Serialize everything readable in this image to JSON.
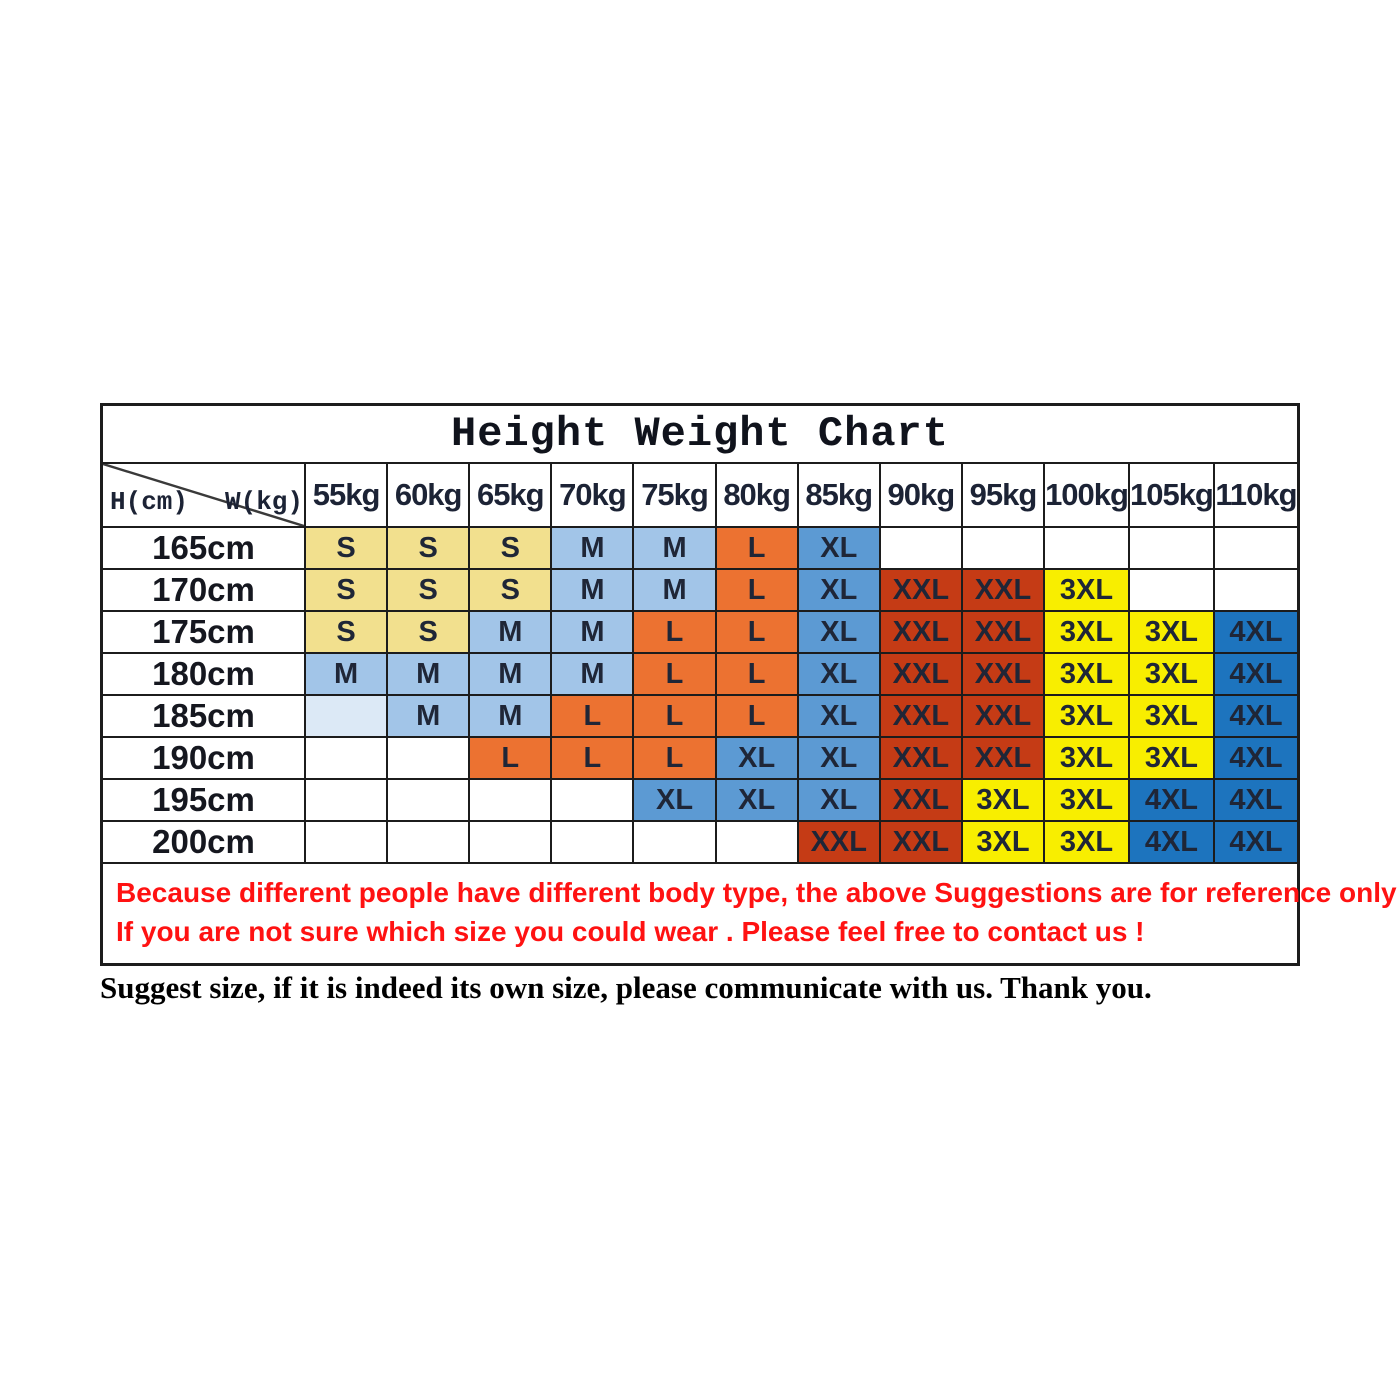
{
  "title": "Height Weight Chart",
  "corner": {
    "height_label": "H(cm)",
    "weight_label": "W(kg)"
  },
  "weight_headers": [
    "55kg",
    "60kg",
    "65kg",
    "70kg",
    "75kg",
    "80kg",
    "85kg",
    "90kg",
    "95kg",
    "100kg",
    "105kg",
    "110kg"
  ],
  "rows": [
    {
      "height": "165cm",
      "cells": [
        {
          "t": "S",
          "c": "s"
        },
        {
          "t": "S",
          "c": "s"
        },
        {
          "t": "S",
          "c": "s"
        },
        {
          "t": "M",
          "c": "m"
        },
        {
          "t": "M",
          "c": "m"
        },
        {
          "t": "L",
          "c": "l"
        },
        {
          "t": "XL",
          "c": "xl"
        },
        {
          "t": "",
          "c": ""
        },
        {
          "t": "",
          "c": ""
        },
        {
          "t": "",
          "c": ""
        },
        {
          "t": "",
          "c": ""
        },
        {
          "t": "",
          "c": ""
        }
      ]
    },
    {
      "height": "170cm",
      "cells": [
        {
          "t": "S",
          "c": "s"
        },
        {
          "t": "S",
          "c": "s"
        },
        {
          "t": "S",
          "c": "s"
        },
        {
          "t": "M",
          "c": "m"
        },
        {
          "t": "M",
          "c": "m"
        },
        {
          "t": "L",
          "c": "l"
        },
        {
          "t": "XL",
          "c": "xl"
        },
        {
          "t": "XXL",
          "c": "xxl"
        },
        {
          "t": "XXL",
          "c": "xxl"
        },
        {
          "t": "3XL",
          "c": "x3l"
        },
        {
          "t": "",
          "c": ""
        },
        {
          "t": "",
          "c": ""
        }
      ]
    },
    {
      "height": "175cm",
      "cells": [
        {
          "t": "S",
          "c": "s"
        },
        {
          "t": "S",
          "c": "s"
        },
        {
          "t": "M",
          "c": "m"
        },
        {
          "t": "M",
          "c": "m"
        },
        {
          "t": "L",
          "c": "l"
        },
        {
          "t": "L",
          "c": "l"
        },
        {
          "t": "XL",
          "c": "xl"
        },
        {
          "t": "XXL",
          "c": "xxl"
        },
        {
          "t": "XXL",
          "c": "xxl"
        },
        {
          "t": "3XL",
          "c": "x3l"
        },
        {
          "t": "3XL",
          "c": "x3l"
        },
        {
          "t": "4XL",
          "c": "x4l"
        }
      ]
    },
    {
      "height": "180cm",
      "cells": [
        {
          "t": "M",
          "c": "m"
        },
        {
          "t": "M",
          "c": "m"
        },
        {
          "t": "M",
          "c": "m"
        },
        {
          "t": "M",
          "c": "m"
        },
        {
          "t": "L",
          "c": "l"
        },
        {
          "t": "L",
          "c": "l"
        },
        {
          "t": "XL",
          "c": "xl"
        },
        {
          "t": "XXL",
          "c": "xxl"
        },
        {
          "t": "XXL",
          "c": "xxl"
        },
        {
          "t": "3XL",
          "c": "x3l"
        },
        {
          "t": "3XL",
          "c": "x3l"
        },
        {
          "t": "4XL",
          "c": "x4l"
        }
      ]
    },
    {
      "height": "185cm",
      "cells": [
        {
          "t": "",
          "c": "ml"
        },
        {
          "t": "M",
          "c": "m"
        },
        {
          "t": "M",
          "c": "m"
        },
        {
          "t": "L",
          "c": "l"
        },
        {
          "t": "L",
          "c": "l"
        },
        {
          "t": "L",
          "c": "l"
        },
        {
          "t": "XL",
          "c": "xl"
        },
        {
          "t": "XXL",
          "c": "xxl"
        },
        {
          "t": "XXL",
          "c": "xxl"
        },
        {
          "t": "3XL",
          "c": "x3l"
        },
        {
          "t": "3XL",
          "c": "x3l"
        },
        {
          "t": "4XL",
          "c": "x4l"
        }
      ]
    },
    {
      "height": "190cm",
      "cells": [
        {
          "t": "",
          "c": ""
        },
        {
          "t": "",
          "c": ""
        },
        {
          "t": "L",
          "c": "l"
        },
        {
          "t": "L",
          "c": "l"
        },
        {
          "t": "L",
          "c": "l"
        },
        {
          "t": "XL",
          "c": "xl"
        },
        {
          "t": "XL",
          "c": "xl"
        },
        {
          "t": "XXL",
          "c": "xxl"
        },
        {
          "t": "XXL",
          "c": "xxl"
        },
        {
          "t": "3XL",
          "c": "x3l"
        },
        {
          "t": "3XL",
          "c": "x3l"
        },
        {
          "t": "4XL",
          "c": "x4l"
        }
      ]
    },
    {
      "height": "195cm",
      "cells": [
        {
          "t": "",
          "c": ""
        },
        {
          "t": "",
          "c": ""
        },
        {
          "t": "",
          "c": ""
        },
        {
          "t": "",
          "c": ""
        },
        {
          "t": "XL",
          "c": "xl"
        },
        {
          "t": "XL",
          "c": "xl"
        },
        {
          "t": "XL",
          "c": "xl"
        },
        {
          "t": "XXL",
          "c": "xxl"
        },
        {
          "t": "3XL",
          "c": "x3l"
        },
        {
          "t": "3XL",
          "c": "x3l"
        },
        {
          "t": "4XL",
          "c": "x4l"
        },
        {
          "t": "4XL",
          "c": "x4l"
        }
      ]
    },
    {
      "height": "200cm",
      "cells": [
        {
          "t": "",
          "c": ""
        },
        {
          "t": "",
          "c": ""
        },
        {
          "t": "",
          "c": ""
        },
        {
          "t": "",
          "c": ""
        },
        {
          "t": "",
          "c": ""
        },
        {
          "t": "",
          "c": ""
        },
        {
          "t": "XXL",
          "c": "xxl"
        },
        {
          "t": "XXL",
          "c": "xxl"
        },
        {
          "t": "3XL",
          "c": "x3l"
        },
        {
          "t": "3XL",
          "c": "x3l"
        },
        {
          "t": "4XL",
          "c": "x4l"
        },
        {
          "t": "4XL",
          "c": "x4l"
        }
      ]
    }
  ],
  "notes": [
    "Because different people have different body type, the above Suggestions are for reference only !",
    "If you are not sure which size you could wear . Please feel free to contact us !"
  ],
  "footer": "Suggest size, if it is indeed its own size, please communicate with us. Thank you.",
  "colors": {
    "s": "#F2E08E",
    "m": "#A2C5E8",
    "ml": "#DCE9F6",
    "l": "#EC7231",
    "xl": "#5C9AD3",
    "xxl": "#C53B15",
    "x3l": "#F8EE00",
    "x4l": "#1D74BE",
    "red": "#FF1212",
    "grid": "#1c1c1c"
  },
  "size_color_legend": {
    "S": "#F2E08E",
    "M": "#A2C5E8",
    "L": "#EC7231",
    "XL": "#5C9AD3",
    "XXL": "#C53B15",
    "3XL": "#F8EE00",
    "4XL": "#1D74BE",
    "unlabeled": "#DCE9F6"
  },
  "chart_data": {
    "type": "table",
    "title": "Height Weight Chart",
    "row_axis": "H(cm)",
    "col_axis": "W(kg)",
    "columns": [
      "55kg",
      "60kg",
      "65kg",
      "70kg",
      "75kg",
      "80kg",
      "85kg",
      "90kg",
      "95kg",
      "100kg",
      "105kg",
      "110kg"
    ],
    "rows": [
      "165cm",
      "170cm",
      "175cm",
      "180cm",
      "185cm",
      "190cm",
      "195cm",
      "200cm"
    ],
    "matrix": [
      [
        "S",
        "S",
        "S",
        "M",
        "M",
        "L",
        "XL",
        "",
        "",
        "",
        "",
        ""
      ],
      [
        "S",
        "S",
        "S",
        "M",
        "M",
        "L",
        "XL",
        "XXL",
        "XXL",
        "3XL",
        "",
        ""
      ],
      [
        "S",
        "S",
        "M",
        "M",
        "L",
        "L",
        "XL",
        "XXL",
        "XXL",
        "3XL",
        "3XL",
        "4XL"
      ],
      [
        "M",
        "M",
        "M",
        "M",
        "L",
        "L",
        "XL",
        "XXL",
        "XXL",
        "3XL",
        "3XL",
        "4XL"
      ],
      [
        "",
        "M",
        "M",
        "L",
        "L",
        "L",
        "XL",
        "XXL",
        "XXL",
        "3XL",
        "3XL",
        "4XL"
      ],
      [
        "",
        "",
        "L",
        "L",
        "L",
        "XL",
        "XL",
        "XXL",
        "XXL",
        "3XL",
        "3XL",
        "4XL"
      ],
      [
        "",
        "",
        "",
        "",
        "XL",
        "XL",
        "XL",
        "XXL",
        "3XL",
        "3XL",
        "4XL",
        "4XL"
      ],
      [
        "",
        "",
        "",
        "",
        "",
        "",
        "XXL",
        "XXL",
        "3XL",
        "3XL",
        "4XL",
        "4XL"
      ]
    ]
  }
}
